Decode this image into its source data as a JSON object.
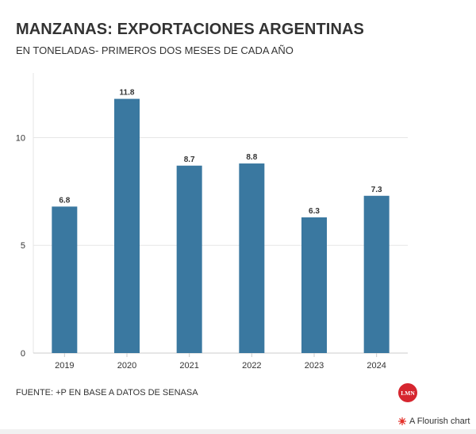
{
  "header": {
    "title": "MANZANAS: EXPORTACIONES ARGENTINAS",
    "subtitle": "EN TONELADAS- PRIMEROS DOS MESES DE CADA AÑO"
  },
  "footer": {
    "source": "FUENTE: +P EN BASE A DATOS DE SENASA",
    "logo_text": "LMN",
    "flourish_label": "A Flourish chart"
  },
  "colors": {
    "bar": "#3a78a0",
    "logo": "#d6262f",
    "grid": "#e6e6e6"
  },
  "chart_data": {
    "type": "bar",
    "categories": [
      "2019",
      "2020",
      "2021",
      "2022",
      "2023",
      "2024"
    ],
    "values": [
      6.8,
      11.8,
      8.7,
      8.8,
      6.3,
      7.3
    ],
    "value_labels": [
      "6.8",
      "11.8",
      "8.7",
      "8.8",
      "6.3",
      "7.3"
    ],
    "yticks": [
      0,
      5,
      10
    ],
    "ytick_labels": [
      "0",
      "5",
      "10"
    ],
    "ylim": [
      0,
      13
    ],
    "grid": true,
    "title": "MANZANAS: EXPORTACIONES ARGENTINAS",
    "subtitle": "EN TONELADAS- PRIMEROS DOS MESES DE CADA AÑO",
    "xlabel": "",
    "ylabel": ""
  }
}
